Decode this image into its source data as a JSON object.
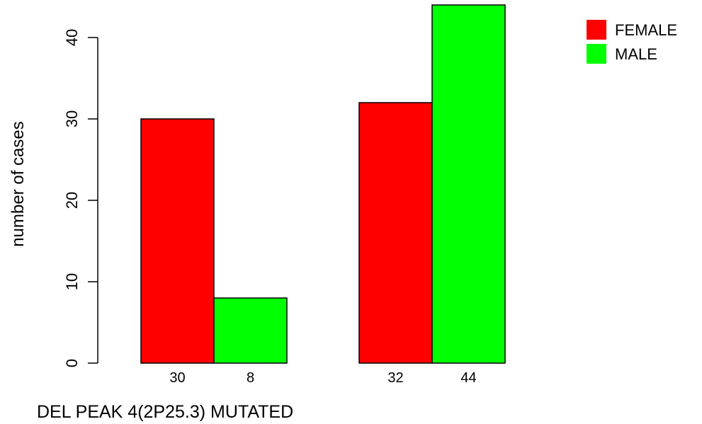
{
  "chart_data": {
    "type": "bar",
    "title": "",
    "xlabel": "DEL PEAK  4(2P25.3) MUTATED",
    "ylabel": "number of cases",
    "ylim": [
      0,
      44
    ],
    "yticks": [
      0,
      10,
      20,
      30,
      40
    ],
    "grid": false,
    "legend_position": "top-right",
    "series": [
      {
        "name": "FEMALE",
        "color": "#ff0000",
        "values": [
          30,
          32
        ]
      },
      {
        "name": "MALE",
        "color": "#00ff00",
        "values": [
          8,
          44
        ]
      }
    ],
    "bar_labels": [
      [
        "30",
        "8"
      ],
      [
        "32",
        "44"
      ]
    ]
  }
}
